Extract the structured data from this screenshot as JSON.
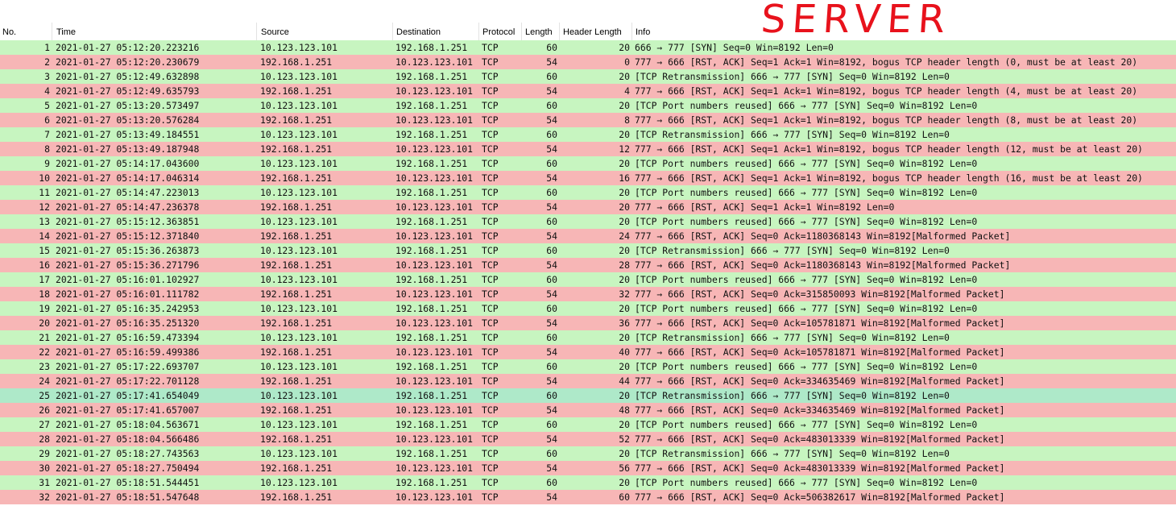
{
  "annotation": "SERVER",
  "columns": {
    "no": "No.",
    "time": "Time",
    "source": "Source",
    "destination": "Destination",
    "protocol": "Protocol",
    "length": "Length",
    "header_length": "Header Length",
    "info": "Info"
  },
  "row_colors": {
    "syn": "#c7f5c0",
    "rst": "#f7b6b6",
    "selected": "#aee9c9"
  },
  "rows": [
    {
      "no": "1",
      "time": "2021-01-27 05:12:20.223216",
      "source": "10.123.123.101",
      "destination": "192.168.1.251",
      "protocol": "TCP",
      "length": "60",
      "header_length": "20",
      "info": "666 → 777 [SYN] Seq=0 Win=8192 Len=0",
      "kind": "syn"
    },
    {
      "no": "2",
      "time": "2021-01-27 05:12:20.230679",
      "source": "192.168.1.251",
      "destination": "10.123.123.101",
      "protocol": "TCP",
      "length": "54",
      "header_length": "0",
      "info": "777 → 666 [RST, ACK] Seq=1 Ack=1 Win=8192, bogus TCP header length (0, must be at least 20)",
      "kind": "rst"
    },
    {
      "no": "3",
      "time": "2021-01-27 05:12:49.632898",
      "source": "10.123.123.101",
      "destination": "192.168.1.251",
      "protocol": "TCP",
      "length": "60",
      "header_length": "20",
      "info": "[TCP Retransmission] 666 → 777 [SYN] Seq=0 Win=8192 Len=0",
      "kind": "syn"
    },
    {
      "no": "4",
      "time": "2021-01-27 05:12:49.635793",
      "source": "192.168.1.251",
      "destination": "10.123.123.101",
      "protocol": "TCP",
      "length": "54",
      "header_length": "4",
      "info": "777 → 666 [RST, ACK] Seq=1 Ack=1 Win=8192, bogus TCP header length (4, must be at least 20)",
      "kind": "rst"
    },
    {
      "no": "5",
      "time": "2021-01-27 05:13:20.573497",
      "source": "10.123.123.101",
      "destination": "192.168.1.251",
      "protocol": "TCP",
      "length": "60",
      "header_length": "20",
      "info": "[TCP Port numbers reused] 666 → 777 [SYN] Seq=0 Win=8192 Len=0",
      "kind": "syn"
    },
    {
      "no": "6",
      "time": "2021-01-27 05:13:20.576284",
      "source": "192.168.1.251",
      "destination": "10.123.123.101",
      "protocol": "TCP",
      "length": "54",
      "header_length": "8",
      "info": "777 → 666 [RST, ACK] Seq=1 Ack=1 Win=8192, bogus TCP header length (8, must be at least 20)",
      "kind": "rst"
    },
    {
      "no": "7",
      "time": "2021-01-27 05:13:49.184551",
      "source": "10.123.123.101",
      "destination": "192.168.1.251",
      "protocol": "TCP",
      "length": "60",
      "header_length": "20",
      "info": "[TCP Retransmission] 666 → 777 [SYN] Seq=0 Win=8192 Len=0",
      "kind": "syn"
    },
    {
      "no": "8",
      "time": "2021-01-27 05:13:49.187948",
      "source": "192.168.1.251",
      "destination": "10.123.123.101",
      "protocol": "TCP",
      "length": "54",
      "header_length": "12",
      "info": "777 → 666 [RST, ACK] Seq=1 Ack=1 Win=8192, bogus TCP header length (12, must be at least 20)",
      "kind": "rst"
    },
    {
      "no": "9",
      "time": "2021-01-27 05:14:17.043600",
      "source": "10.123.123.101",
      "destination": "192.168.1.251",
      "protocol": "TCP",
      "length": "60",
      "header_length": "20",
      "info": "[TCP Port numbers reused] 666 → 777 [SYN] Seq=0 Win=8192 Len=0",
      "kind": "syn"
    },
    {
      "no": "10",
      "time": "2021-01-27 05:14:17.046314",
      "source": "192.168.1.251",
      "destination": "10.123.123.101",
      "protocol": "TCP",
      "length": "54",
      "header_length": "16",
      "info": "777 → 666 [RST, ACK] Seq=1 Ack=1 Win=8192, bogus TCP header length (16, must be at least 20)",
      "kind": "rst"
    },
    {
      "no": "11",
      "time": "2021-01-27 05:14:47.223013",
      "source": "10.123.123.101",
      "destination": "192.168.1.251",
      "protocol": "TCP",
      "length": "60",
      "header_length": "20",
      "info": "[TCP Port numbers reused] 666 → 777 [SYN] Seq=0 Win=8192 Len=0",
      "kind": "syn"
    },
    {
      "no": "12",
      "time": "2021-01-27 05:14:47.236378",
      "source": "192.168.1.251",
      "destination": "10.123.123.101",
      "protocol": "TCP",
      "length": "54",
      "header_length": "20",
      "info": "777 → 666 [RST, ACK] Seq=1 Ack=1 Win=8192 Len=0",
      "kind": "rst"
    },
    {
      "no": "13",
      "time": "2021-01-27 05:15:12.363851",
      "source": "10.123.123.101",
      "destination": "192.168.1.251",
      "protocol": "TCP",
      "length": "60",
      "header_length": "20",
      "info": "[TCP Port numbers reused] 666 → 777 [SYN] Seq=0 Win=8192 Len=0",
      "kind": "syn"
    },
    {
      "no": "14",
      "time": "2021-01-27 05:15:12.371840",
      "source": "192.168.1.251",
      "destination": "10.123.123.101",
      "protocol": "TCP",
      "length": "54",
      "header_length": "24",
      "info": "777 → 666 [RST, ACK] Seq=0 Ack=1180368143 Win=8192[Malformed Packet]",
      "kind": "rst"
    },
    {
      "no": "15",
      "time": "2021-01-27 05:15:36.263873",
      "source": "10.123.123.101",
      "destination": "192.168.1.251",
      "protocol": "TCP",
      "length": "60",
      "header_length": "20",
      "info": "[TCP Retransmission] 666 → 777 [SYN] Seq=0 Win=8192 Len=0",
      "kind": "syn"
    },
    {
      "no": "16",
      "time": "2021-01-27 05:15:36.271796",
      "source": "192.168.1.251",
      "destination": "10.123.123.101",
      "protocol": "TCP",
      "length": "54",
      "header_length": "28",
      "info": "777 → 666 [RST, ACK] Seq=0 Ack=1180368143 Win=8192[Malformed Packet]",
      "kind": "rst"
    },
    {
      "no": "17",
      "time": "2021-01-27 05:16:01.102927",
      "source": "10.123.123.101",
      "destination": "192.168.1.251",
      "protocol": "TCP",
      "length": "60",
      "header_length": "20",
      "info": "[TCP Port numbers reused] 666 → 777 [SYN] Seq=0 Win=8192 Len=0",
      "kind": "syn"
    },
    {
      "no": "18",
      "time": "2021-01-27 05:16:01.111782",
      "source": "192.168.1.251",
      "destination": "10.123.123.101",
      "protocol": "TCP",
      "length": "54",
      "header_length": "32",
      "info": "777 → 666 [RST, ACK] Seq=0 Ack=315850093 Win=8192[Malformed Packet]",
      "kind": "rst"
    },
    {
      "no": "19",
      "time": "2021-01-27 05:16:35.242953",
      "source": "10.123.123.101",
      "destination": "192.168.1.251",
      "protocol": "TCP",
      "length": "60",
      "header_length": "20",
      "info": "[TCP Port numbers reused] 666 → 777 [SYN] Seq=0 Win=8192 Len=0",
      "kind": "syn"
    },
    {
      "no": "20",
      "time": "2021-01-27 05:16:35.251320",
      "source": "192.168.1.251",
      "destination": "10.123.123.101",
      "protocol": "TCP",
      "length": "54",
      "header_length": "36",
      "info": "777 → 666 [RST, ACK] Seq=0 Ack=105781871 Win=8192[Malformed Packet]",
      "kind": "rst"
    },
    {
      "no": "21",
      "time": "2021-01-27 05:16:59.473394",
      "source": "10.123.123.101",
      "destination": "192.168.1.251",
      "protocol": "TCP",
      "length": "60",
      "header_length": "20",
      "info": "[TCP Retransmission] 666 → 777 [SYN] Seq=0 Win=8192 Len=0",
      "kind": "syn"
    },
    {
      "no": "22",
      "time": "2021-01-27 05:16:59.499386",
      "source": "192.168.1.251",
      "destination": "10.123.123.101",
      "protocol": "TCP",
      "length": "54",
      "header_length": "40",
      "info": "777 → 666 [RST, ACK] Seq=0 Ack=105781871 Win=8192[Malformed Packet]",
      "kind": "rst"
    },
    {
      "no": "23",
      "time": "2021-01-27 05:17:22.693707",
      "source": "10.123.123.101",
      "destination": "192.168.1.251",
      "protocol": "TCP",
      "length": "60",
      "header_length": "20",
      "info": "[TCP Port numbers reused] 666 → 777 [SYN] Seq=0 Win=8192 Len=0",
      "kind": "syn"
    },
    {
      "no": "24",
      "time": "2021-01-27 05:17:22.701128",
      "source": "192.168.1.251",
      "destination": "10.123.123.101",
      "protocol": "TCP",
      "length": "54",
      "header_length": "44",
      "info": "777 → 666 [RST, ACK] Seq=0 Ack=334635469 Win=8192[Malformed Packet]",
      "kind": "rst"
    },
    {
      "no": "25",
      "time": "2021-01-27 05:17:41.654049",
      "source": "10.123.123.101",
      "destination": "192.168.1.251",
      "protocol": "TCP",
      "length": "60",
      "header_length": "20",
      "info": "[TCP Retransmission] 666 → 777 [SYN] Seq=0 Win=8192 Len=0",
      "kind": "sel"
    },
    {
      "no": "26",
      "time": "2021-01-27 05:17:41.657007",
      "source": "192.168.1.251",
      "destination": "10.123.123.101",
      "protocol": "TCP",
      "length": "54",
      "header_length": "48",
      "info": "777 → 666 [RST, ACK] Seq=0 Ack=334635469 Win=8192[Malformed Packet]",
      "kind": "rst"
    },
    {
      "no": "27",
      "time": "2021-01-27 05:18:04.563671",
      "source": "10.123.123.101",
      "destination": "192.168.1.251",
      "protocol": "TCP",
      "length": "60",
      "header_length": "20",
      "info": "[TCP Port numbers reused] 666 → 777 [SYN] Seq=0 Win=8192 Len=0",
      "kind": "syn"
    },
    {
      "no": "28",
      "time": "2021-01-27 05:18:04.566486",
      "source": "192.168.1.251",
      "destination": "10.123.123.101",
      "protocol": "TCP",
      "length": "54",
      "header_length": "52",
      "info": "777 → 666 [RST, ACK] Seq=0 Ack=483013339 Win=8192[Malformed Packet]",
      "kind": "rst"
    },
    {
      "no": "29",
      "time": "2021-01-27 05:18:27.743563",
      "source": "10.123.123.101",
      "destination": "192.168.1.251",
      "protocol": "TCP",
      "length": "60",
      "header_length": "20",
      "info": "[TCP Retransmission] 666 → 777 [SYN] Seq=0 Win=8192 Len=0",
      "kind": "syn"
    },
    {
      "no": "30",
      "time": "2021-01-27 05:18:27.750494",
      "source": "192.168.1.251",
      "destination": "10.123.123.101",
      "protocol": "TCP",
      "length": "54",
      "header_length": "56",
      "info": "777 → 666 [RST, ACK] Seq=0 Ack=483013339 Win=8192[Malformed Packet]",
      "kind": "rst"
    },
    {
      "no": "31",
      "time": "2021-01-27 05:18:51.544451",
      "source": "10.123.123.101",
      "destination": "192.168.1.251",
      "protocol": "TCP",
      "length": "60",
      "header_length": "20",
      "info": "[TCP Port numbers reused] 666 → 777 [SYN] Seq=0 Win=8192 Len=0",
      "kind": "syn"
    },
    {
      "no": "32",
      "time": "2021-01-27 05:18:51.547648",
      "source": "192.168.1.251",
      "destination": "10.123.123.101",
      "protocol": "TCP",
      "length": "54",
      "header_length": "60",
      "info": "777 → 666 [RST, ACK] Seq=0 Ack=506382617 Win=8192[Malformed Packet]",
      "kind": "rst"
    }
  ]
}
